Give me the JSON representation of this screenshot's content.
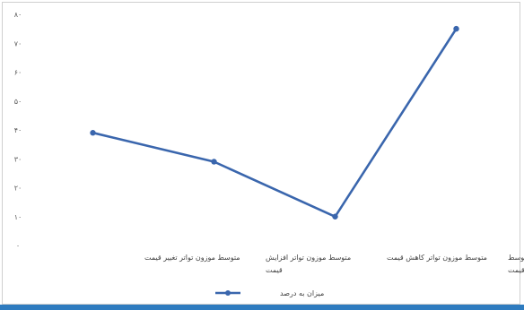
{
  "chart_data": {
    "type": "line",
    "title": "",
    "xlabel": "",
    "ylabel": "",
    "ylim": [
      0,
      80
    ],
    "y_ticks": [
      "۰",
      "۱۰",
      "۲۰",
      "۳۰",
      "۴۰",
      "۵۰",
      "۶۰",
      "۷۰",
      "۸۰"
    ],
    "y_tick_values": [
      0,
      10,
      20,
      30,
      40,
      50,
      60,
      70,
      80
    ],
    "grid": false,
    "legend": "bottom-left",
    "categories": [
      [
        "متوسط موزون تواتر تغییر قیمت"
      ],
      [
        "متوسط موزون تواتر افزایش",
        "قیمت"
      ],
      [
        "متوسط موزون تواتر  کاهش قیمت"
      ],
      [
        "درصد افزایش قیمت در متوسط",
        "تواتر تغییر قیمت"
      ]
    ],
    "series": [
      {
        "name": "میزان به درصد",
        "values": [
          39,
          29,
          10,
          75
        ],
        "color": "#3a66ad"
      }
    ]
  }
}
